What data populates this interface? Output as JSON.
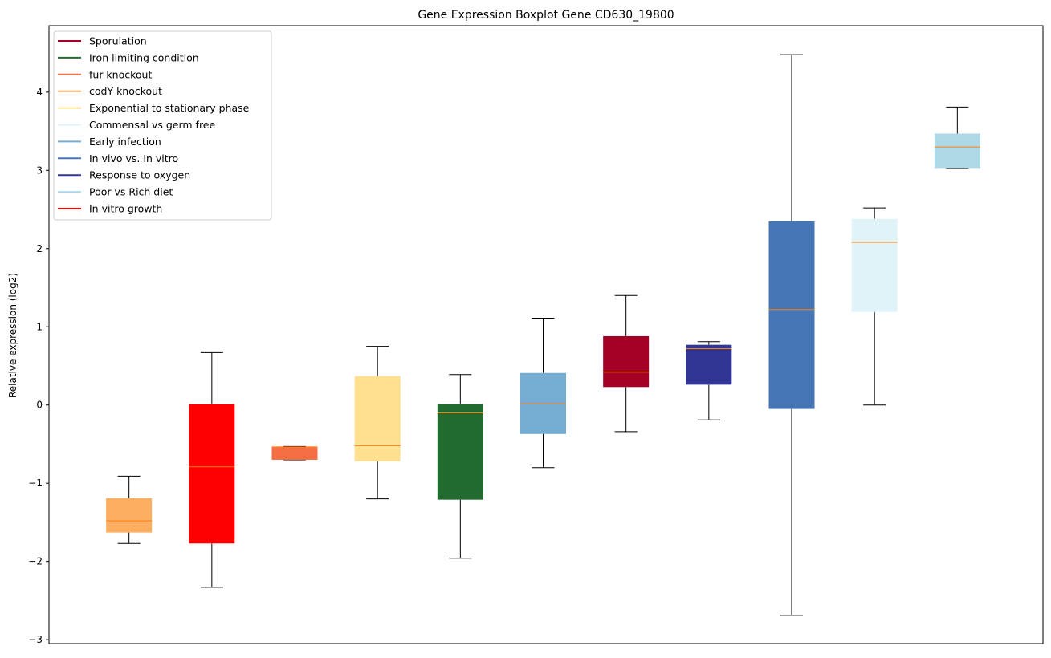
{
  "chart_data": {
    "type": "boxplot",
    "title": "Gene Expression Boxplot Gene CD630_19800",
    "xlabel": "",
    "ylabel": "Relative expression (log2)",
    "ylim": [
      -3.05,
      4.85
    ],
    "yticks": [
      {
        "value": 4,
        "label": "4"
      },
      {
        "value": 3,
        "label": "3"
      },
      {
        "value": 2,
        "label": "2"
      },
      {
        "value": 1,
        "label": "1"
      },
      {
        "value": 0,
        "label": "0"
      },
      {
        "value": -1,
        "label": "−1"
      },
      {
        "value": -2,
        "label": "−2"
      },
      {
        "value": -3,
        "label": "−3"
      }
    ],
    "legend_position": "top-left",
    "legend": [
      {
        "label": "Sporulation",
        "color": "#a50026"
      },
      {
        "label": "Iron limiting condition",
        "color": "#226b2e"
      },
      {
        "label": "fur knockout",
        "color": "#f46d43"
      },
      {
        "label": "codY knockout",
        "color": "#fdae61"
      },
      {
        "label": "Exponential to stationary phase",
        "color": "#fee090"
      },
      {
        "label": "Commensal vs germ free",
        "color": "#e0f3f8"
      },
      {
        "label": "Early infection",
        "color": "#74add1"
      },
      {
        "label": "In vivo vs. In vitro",
        "color": "#4575b4"
      },
      {
        "label": "Response to oxygen",
        "color": "#313695"
      },
      {
        "label": "Poor vs Rich diet",
        "color": "#abd9e9"
      },
      {
        "label": "In vitro growth",
        "color": "#ff0000"
      }
    ],
    "boxes": [
      {
        "color": "#fdae61",
        "whisker_low": -1.77,
        "q1": -1.63,
        "median": -1.48,
        "q3": -1.19,
        "whisker_high": -0.91
      },
      {
        "color": "#ff0000",
        "whisker_low": -2.33,
        "q1": -1.77,
        "median": -0.79,
        "q3": 0.01,
        "whisker_high": 0.67
      },
      {
        "color": "#f46d43",
        "whisker_low": -0.7,
        "q1": -0.7,
        "median": -0.54,
        "q3": -0.53,
        "whisker_high": -0.53
      },
      {
        "color": "#fee090",
        "whisker_low": -1.2,
        "q1": -0.72,
        "median": -0.52,
        "q3": 0.37,
        "whisker_high": 0.75
      },
      {
        "color": "#226b2e",
        "whisker_low": -1.96,
        "q1": -1.21,
        "median": -0.1,
        "q3": 0.01,
        "whisker_high": 0.39
      },
      {
        "color": "#74add1",
        "whisker_low": -0.8,
        "q1": -0.37,
        "median": 0.02,
        "q3": 0.41,
        "whisker_high": 1.11
      },
      {
        "color": "#a50026",
        "whisker_low": -0.34,
        "q1": 0.23,
        "median": 0.42,
        "q3": 0.88,
        "whisker_high": 1.4
      },
      {
        "color": "#313695",
        "whisker_low": -0.19,
        "q1": 0.26,
        "median": 0.72,
        "q3": 0.77,
        "whisker_high": 0.81
      },
      {
        "color": "#4575b4",
        "whisker_low": -2.69,
        "q1": -0.05,
        "median": 1.22,
        "q3": 2.35,
        "whisker_high": 4.48
      },
      {
        "color": "#e0f3f8",
        "whisker_low": 0.0,
        "q1": 1.19,
        "median": 2.08,
        "q3": 2.38,
        "whisker_high": 2.52
      },
      {
        "color": "#add8e6",
        "whisker_low": 3.03,
        "q1": 3.03,
        "median": 3.3,
        "q3": 3.47,
        "whisker_high": 3.81
      }
    ],
    "median_color": "#ff7f0e"
  }
}
